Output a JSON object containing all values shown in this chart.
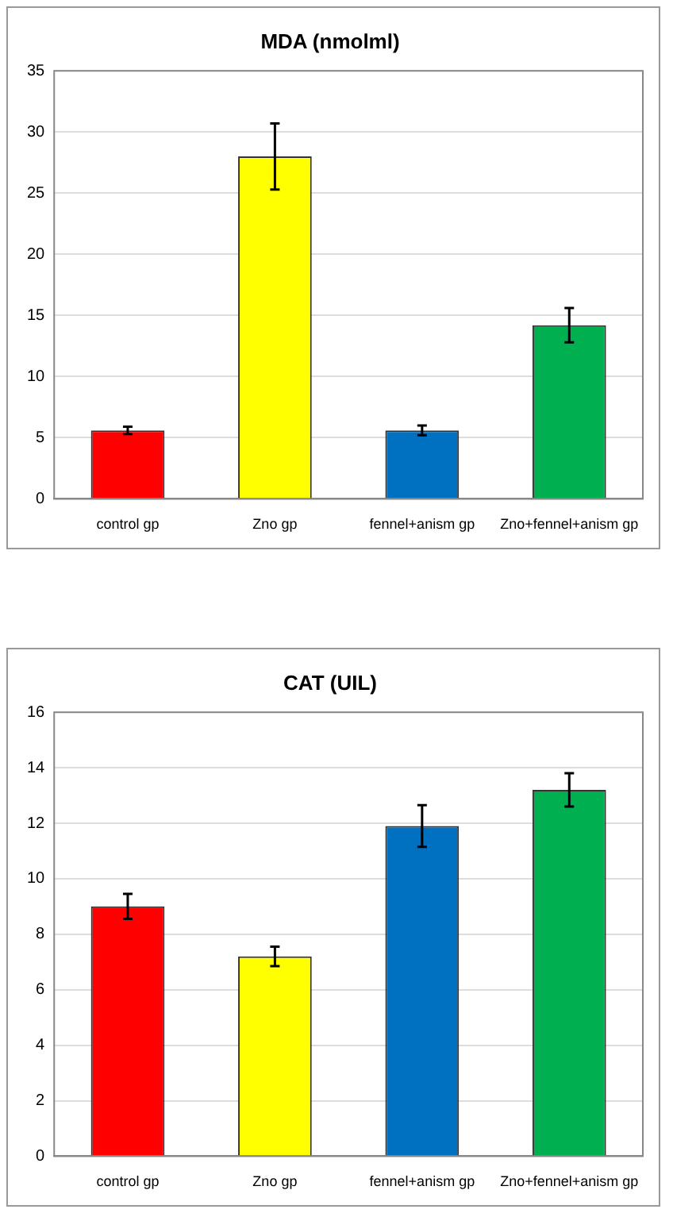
{
  "chart_data": [
    {
      "type": "bar",
      "title": "MDA (nmolml)",
      "categories": [
        "control gp",
        "Zno gp",
        "fennel+anism gp",
        "Zno+fennel+anism gp"
      ],
      "values": [
        5.6,
        28,
        5.6,
        14.2
      ],
      "colors": [
        "#ff0000",
        "#ffff00",
        "#0070c0",
        "#00b050"
      ],
      "errors": [
        0.3,
        2.7,
        0.4,
        1.4
      ],
      "ylim": [
        0,
        35
      ],
      "yticks": [
        0,
        5,
        10,
        15,
        20,
        25,
        30,
        35
      ],
      "grid": "y",
      "legend": false
    },
    {
      "type": "bar",
      "title": "CAT (UIL)",
      "categories": [
        "control gp",
        "Zno gp",
        "fennel+anism gp",
        "Zno+fennel+anism gp"
      ],
      "values": [
        9,
        7.2,
        11.9,
        13.2
      ],
      "colors": [
        "#ff0000",
        "#ffff00",
        "#0070c0",
        "#00b050"
      ],
      "errors": [
        0.45,
        0.35,
        0.75,
        0.6
      ],
      "ylim": [
        0,
        16
      ],
      "yticks": [
        0,
        2,
        4,
        6,
        8,
        10,
        12,
        14,
        16
      ],
      "grid": "y",
      "legend": false
    }
  ]
}
